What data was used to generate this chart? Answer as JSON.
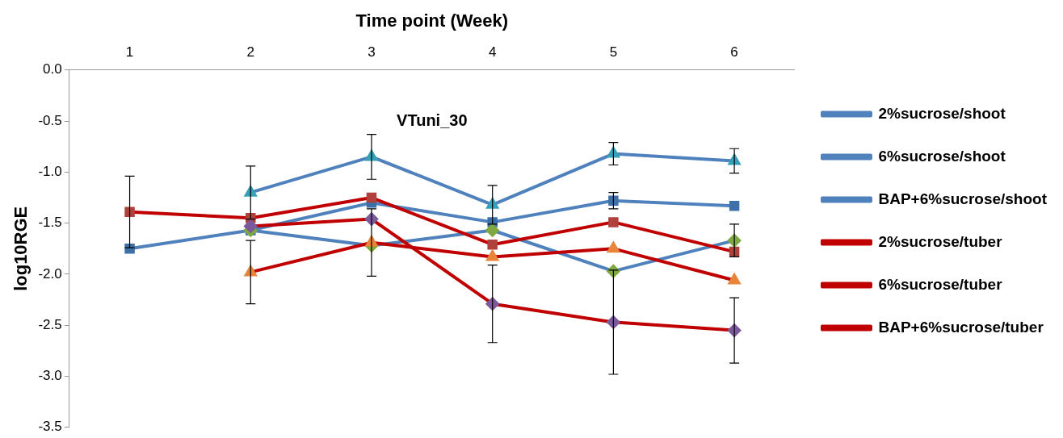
{
  "chart_data": {
    "type": "line",
    "title": "VTuni_30",
    "xlabel": "Time point (Week)",
    "ylabel": "log10RGE",
    "categories": [
      "1",
      "2",
      "3",
      "4",
      "5",
      "6"
    ],
    "ylim": [
      -3.5,
      0
    ],
    "yticks": [
      {
        "value": 0,
        "label": "0.0"
      },
      {
        "value": -0.5,
        "label": "-0.5"
      },
      {
        "value": -1,
        "label": "-1.0"
      },
      {
        "value": -1.5,
        "label": "-1.5"
      },
      {
        "value": -2,
        "label": "-2.0"
      },
      {
        "value": -2.5,
        "label": "-2.5"
      },
      {
        "value": -3,
        "label": "-3.0"
      },
      {
        "value": -3.5,
        "label": "-3.5"
      }
    ],
    "grid": false,
    "legend": "right",
    "series": [
      {
        "name": "2%sucrose/shoot",
        "color": "#4f81bd",
        "marker": "square",
        "values": [
          -1.75,
          -1.57,
          -1.3,
          -1.49,
          -1.28,
          -1.33
        ],
        "errors": [
          null,
          null,
          null,
          null,
          0.08,
          null
        ]
      },
      {
        "name": "6%sucrose/shoot",
        "color": "#4f81bd",
        "marker": "diamond",
        "values": [
          null,
          -1.57,
          -1.72,
          -1.57,
          -1.97,
          -1.67
        ],
        "errors": [
          null,
          null,
          null,
          null,
          null,
          0.16
        ]
      },
      {
        "name": "BAP+6%sucrose/shoot",
        "color": "#4f81bd",
        "marker": "triangle",
        "values": [
          null,
          -1.2,
          -0.85,
          -1.32,
          -0.82,
          -0.89
        ],
        "errors": [
          null,
          0.26,
          0.22,
          0.19,
          0.11,
          0.12
        ]
      },
      {
        "name": "2%sucrose/tuber",
        "color": "#c00000",
        "marker": "square",
        "values": [
          -1.39,
          -1.45,
          -1.25,
          -1.71,
          -1.49,
          -1.78
        ],
        "errors": [
          0.35,
          null,
          null,
          null,
          null,
          null
        ]
      },
      {
        "name": "6%sucrose/tuber",
        "color": "#c00000",
        "marker": "diamond",
        "values": [
          null,
          -1.53,
          -1.46,
          -2.29,
          -2.47,
          -2.55
        ],
        "errors": [
          null,
          null,
          null,
          0.38,
          0.51,
          0.32
        ]
      },
      {
        "name": "BAP+6%sucrose/tuber",
        "color": "#c00000",
        "marker": "triangle",
        "values": [
          null,
          -1.98,
          -1.69,
          -1.83,
          -1.75,
          -2.06
        ],
        "errors": [
          null,
          0.31,
          0.33,
          null,
          null,
          null
        ]
      }
    ]
  }
}
